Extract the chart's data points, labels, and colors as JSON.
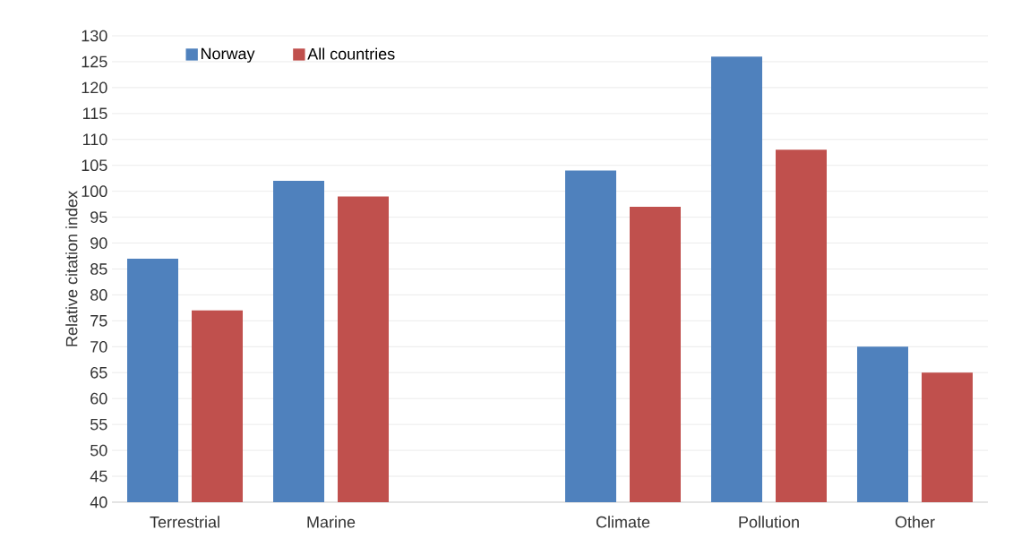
{
  "chart_data": {
    "type": "bar",
    "ylabel": "Relative citation index",
    "categories": [
      "Terrestrial",
      "Marine",
      null,
      "Climate",
      "Pollution",
      "Other"
    ],
    "series": [
      {
        "name": "Norway",
        "color": "#4f81bd",
        "values": [
          87,
          102,
          null,
          104,
          126,
          70
        ]
      },
      {
        "name": "All countries",
        "color": "#c0504d",
        "values": [
          77,
          99,
          null,
          97,
          108,
          65
        ]
      }
    ],
    "ylim": [
      40,
      130
    ],
    "yticks": [
      40,
      45,
      50,
      55,
      60,
      65,
      70,
      75,
      80,
      85,
      90,
      95,
      100,
      105,
      110,
      115,
      120,
      125,
      130
    ],
    "grid": "y",
    "legend": "top left"
  }
}
